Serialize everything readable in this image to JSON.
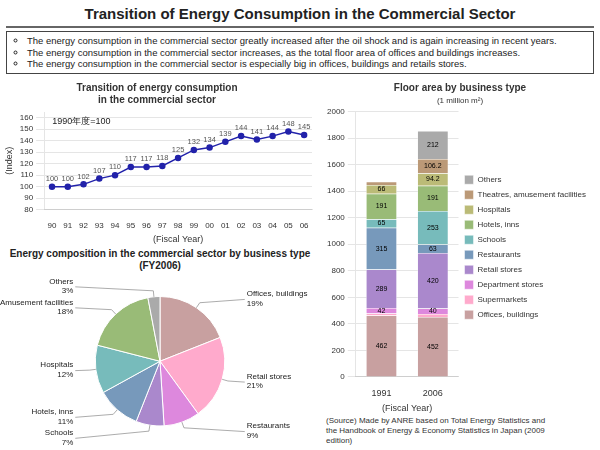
{
  "title": "Transition of Energy Consumption in the Commercial Sector",
  "annotations": [
    "The energy consumption in the commercial sector greatly increased after the oil shock and is again increasing in recent years.",
    "The energy consumption in the commercial sector increases, as the total floor area of offices and buildings increases.",
    "The energy consumption in the commercial sector is especially big in offices, buildings and retails stores."
  ],
  "chart_data": [
    {
      "type": "line",
      "title": [
        "Transition of energy consumption",
        "in the commercial sector"
      ],
      "xlabel": "(Fiscal Year)",
      "ylabel": "(Index)",
      "annotations": [
        "1990年度=100"
      ],
      "categories": [
        "90",
        "91",
        "92",
        "93",
        "94",
        "95",
        "96",
        "97",
        "98",
        "99",
        "00",
        "01",
        "02",
        "03",
        "04",
        "05",
        "06"
      ],
      "values": [
        100,
        100,
        102,
        107,
        110,
        117,
        117,
        118,
        125,
        132,
        134,
        139,
        144,
        141,
        144,
        148,
        145
      ],
      "color": "#2222aa",
      "marker": "circle",
      "data_labels": true,
      "ylim": [
        80,
        165
      ],
      "yticks": [
        80,
        90,
        100,
        110,
        120,
        130,
        140,
        150,
        160
      ],
      "grid": true
    },
    {
      "type": "bar",
      "stacked": true,
      "title": "Floor area by business type",
      "subtitle": "(1 million m²)",
      "xlabel": "(Fiscal Year)",
      "categories": [
        "1991",
        "2006"
      ],
      "series": [
        {
          "name": "Offices, buildings",
          "color": "#c8a0a0",
          "values": [
            462,
            452
          ],
          "value_labels": [
            "462",
            "452"
          ]
        },
        {
          "name": "Supermarkets",
          "color": "#ffaacc",
          "values": [
            16.3,
            22.8
          ],
          "value_labels": [
            null,
            null
          ]
        },
        {
          "name": "Department stores",
          "color": "#dd88dd",
          "values": [
            42,
            40
          ],
          "value_labels": [
            "42",
            "40"
          ]
        },
        {
          "name": "Retail stores",
          "color": "#aa88cc",
          "values": [
            289,
            420
          ],
          "value_labels": [
            "289",
            "420"
          ]
        },
        {
          "name": "Restaurants",
          "color": "#7799bb",
          "values": [
            315,
            63
          ],
          "value_labels": [
            "315",
            "63"
          ]
        },
        {
          "name": "Schools",
          "color": "#77bbbb",
          "values": [
            65,
            253
          ],
          "value_labels": [
            "65",
            "253"
          ]
        },
        {
          "name": "Hotels, inns",
          "color": "#99bb77",
          "values": [
            191,
            191
          ],
          "value_labels": [
            "191",
            "191"
          ]
        },
        {
          "name": "Hospitals",
          "color": "#bbbb77",
          "values": [
            66,
            94.2
          ],
          "value_labels": [
            "66",
            "94.2"
          ]
        },
        {
          "name": "Theatres, amusement facilities",
          "color": "#bb9977",
          "values": [
            25,
            106.2
          ],
          "value_labels": [
            null,
            "106.2"
          ]
        },
        {
          "name": "Others",
          "color": "#aaaaaa",
          "values": [
            0,
            212
          ],
          "value_labels": [
            null,
            "212"
          ]
        }
      ],
      "data_labels": true,
      "legend": "right",
      "ylim": [
        0,
        2000
      ],
      "yticks": [
        0,
        200,
        400,
        600,
        800,
        1000,
        1200,
        1400,
        1600,
        1800,
        2000
      ],
      "grid": true
    },
    {
      "type": "pie",
      "title": "Energy composition in the commercial sector by business type (FY2006)",
      "categories": [
        "Offices, buildings",
        "Retail stores",
        "Restaurants",
        "Schools",
        "Hotels, inns",
        "Hospitals",
        "Amusement facilities",
        "Others"
      ],
      "values": [
        19,
        21,
        9,
        7,
        11,
        12,
        18,
        3
      ],
      "value_labels": [
        "19%",
        "21%",
        "9%",
        "7%",
        "11%",
        "12%",
        "18%",
        "3%"
      ],
      "colors": [
        "#c8a0a0",
        "#ffaacc",
        "#dd88dd",
        "#aa88cc",
        "#7799bb",
        "#77bbbb",
        "#99bb77",
        "#aaaaaa"
      ],
      "data_labels": true,
      "annotations": [
        "(Source) Made by ANRE based on Total Energy Statistics and\nthe Handbook of Energy & Economy Statistics in Japan (2009\nedition)"
      ]
    }
  ]
}
